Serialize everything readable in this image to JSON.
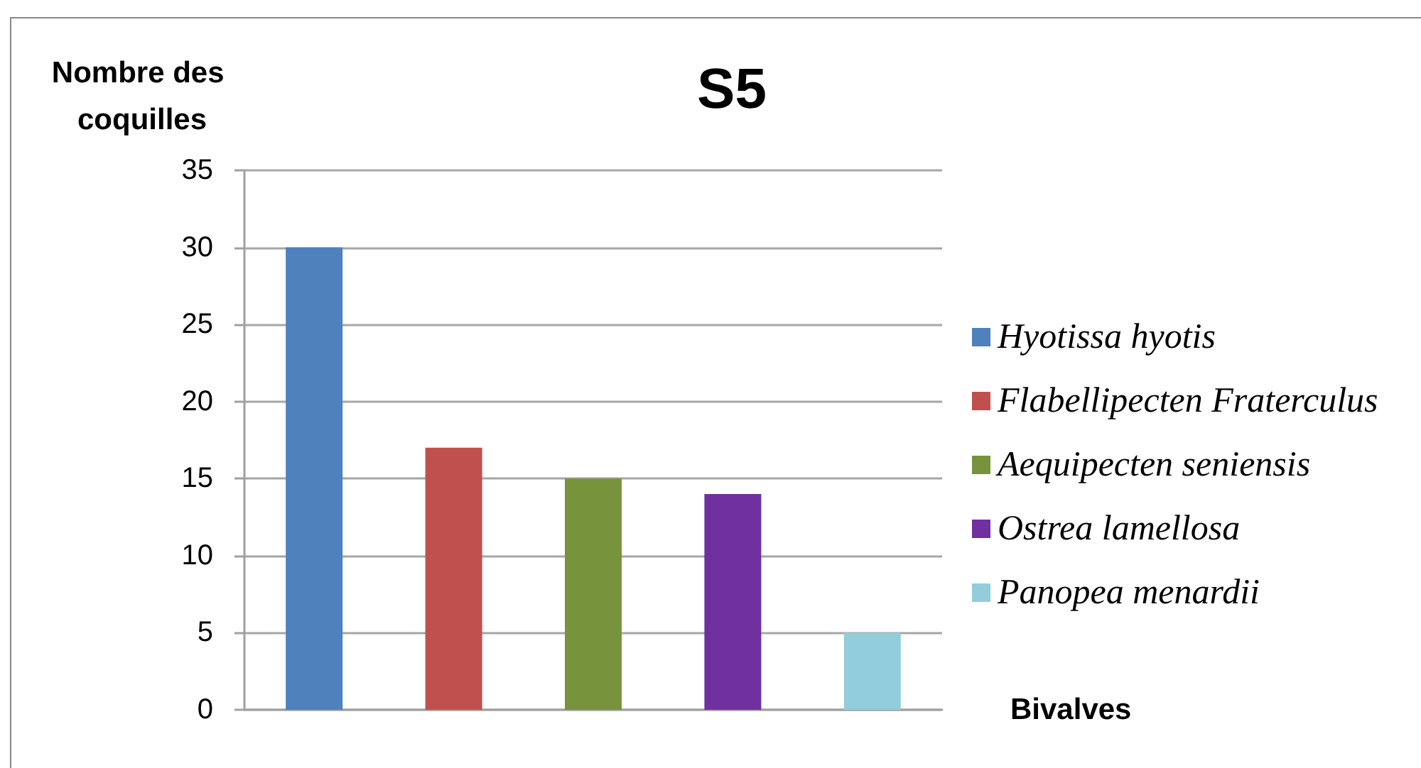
{
  "chart_data": {
    "type": "bar",
    "title": "S5",
    "ylabel": "Nombre des coquilles",
    "xlabel": "Bivalves",
    "categories": [
      null,
      null,
      null,
      null,
      null
    ],
    "series": [
      {
        "name": "Hyotissa hyotis",
        "color": "#4f81bd",
        "values": [
          30,
          null,
          null,
          null,
          null
        ]
      },
      {
        "name": "Flabellipecten Fraterculus",
        "color": "#c0504d",
        "values": [
          null,
          17,
          null,
          null,
          null
        ]
      },
      {
        "name": "Aequipecten seniensis",
        "color": "#77933c",
        "values": [
          null,
          null,
          15,
          null,
          null
        ]
      },
      {
        "name": "Ostrea lamellosa",
        "color": "#7030a0",
        "values": [
          null,
          null,
          null,
          14,
          null
        ]
      },
      {
        "name": "Panopea menardii",
        "color": "#92cddc",
        "values": [
          null,
          null,
          null,
          null,
          5
        ]
      }
    ],
    "ylim": [
      0,
      35
    ],
    "yticks": [
      0,
      5,
      10,
      15,
      20,
      25,
      30,
      35
    ],
    "grid": "y",
    "legend": "right",
    "tick_labels": "y"
  }
}
